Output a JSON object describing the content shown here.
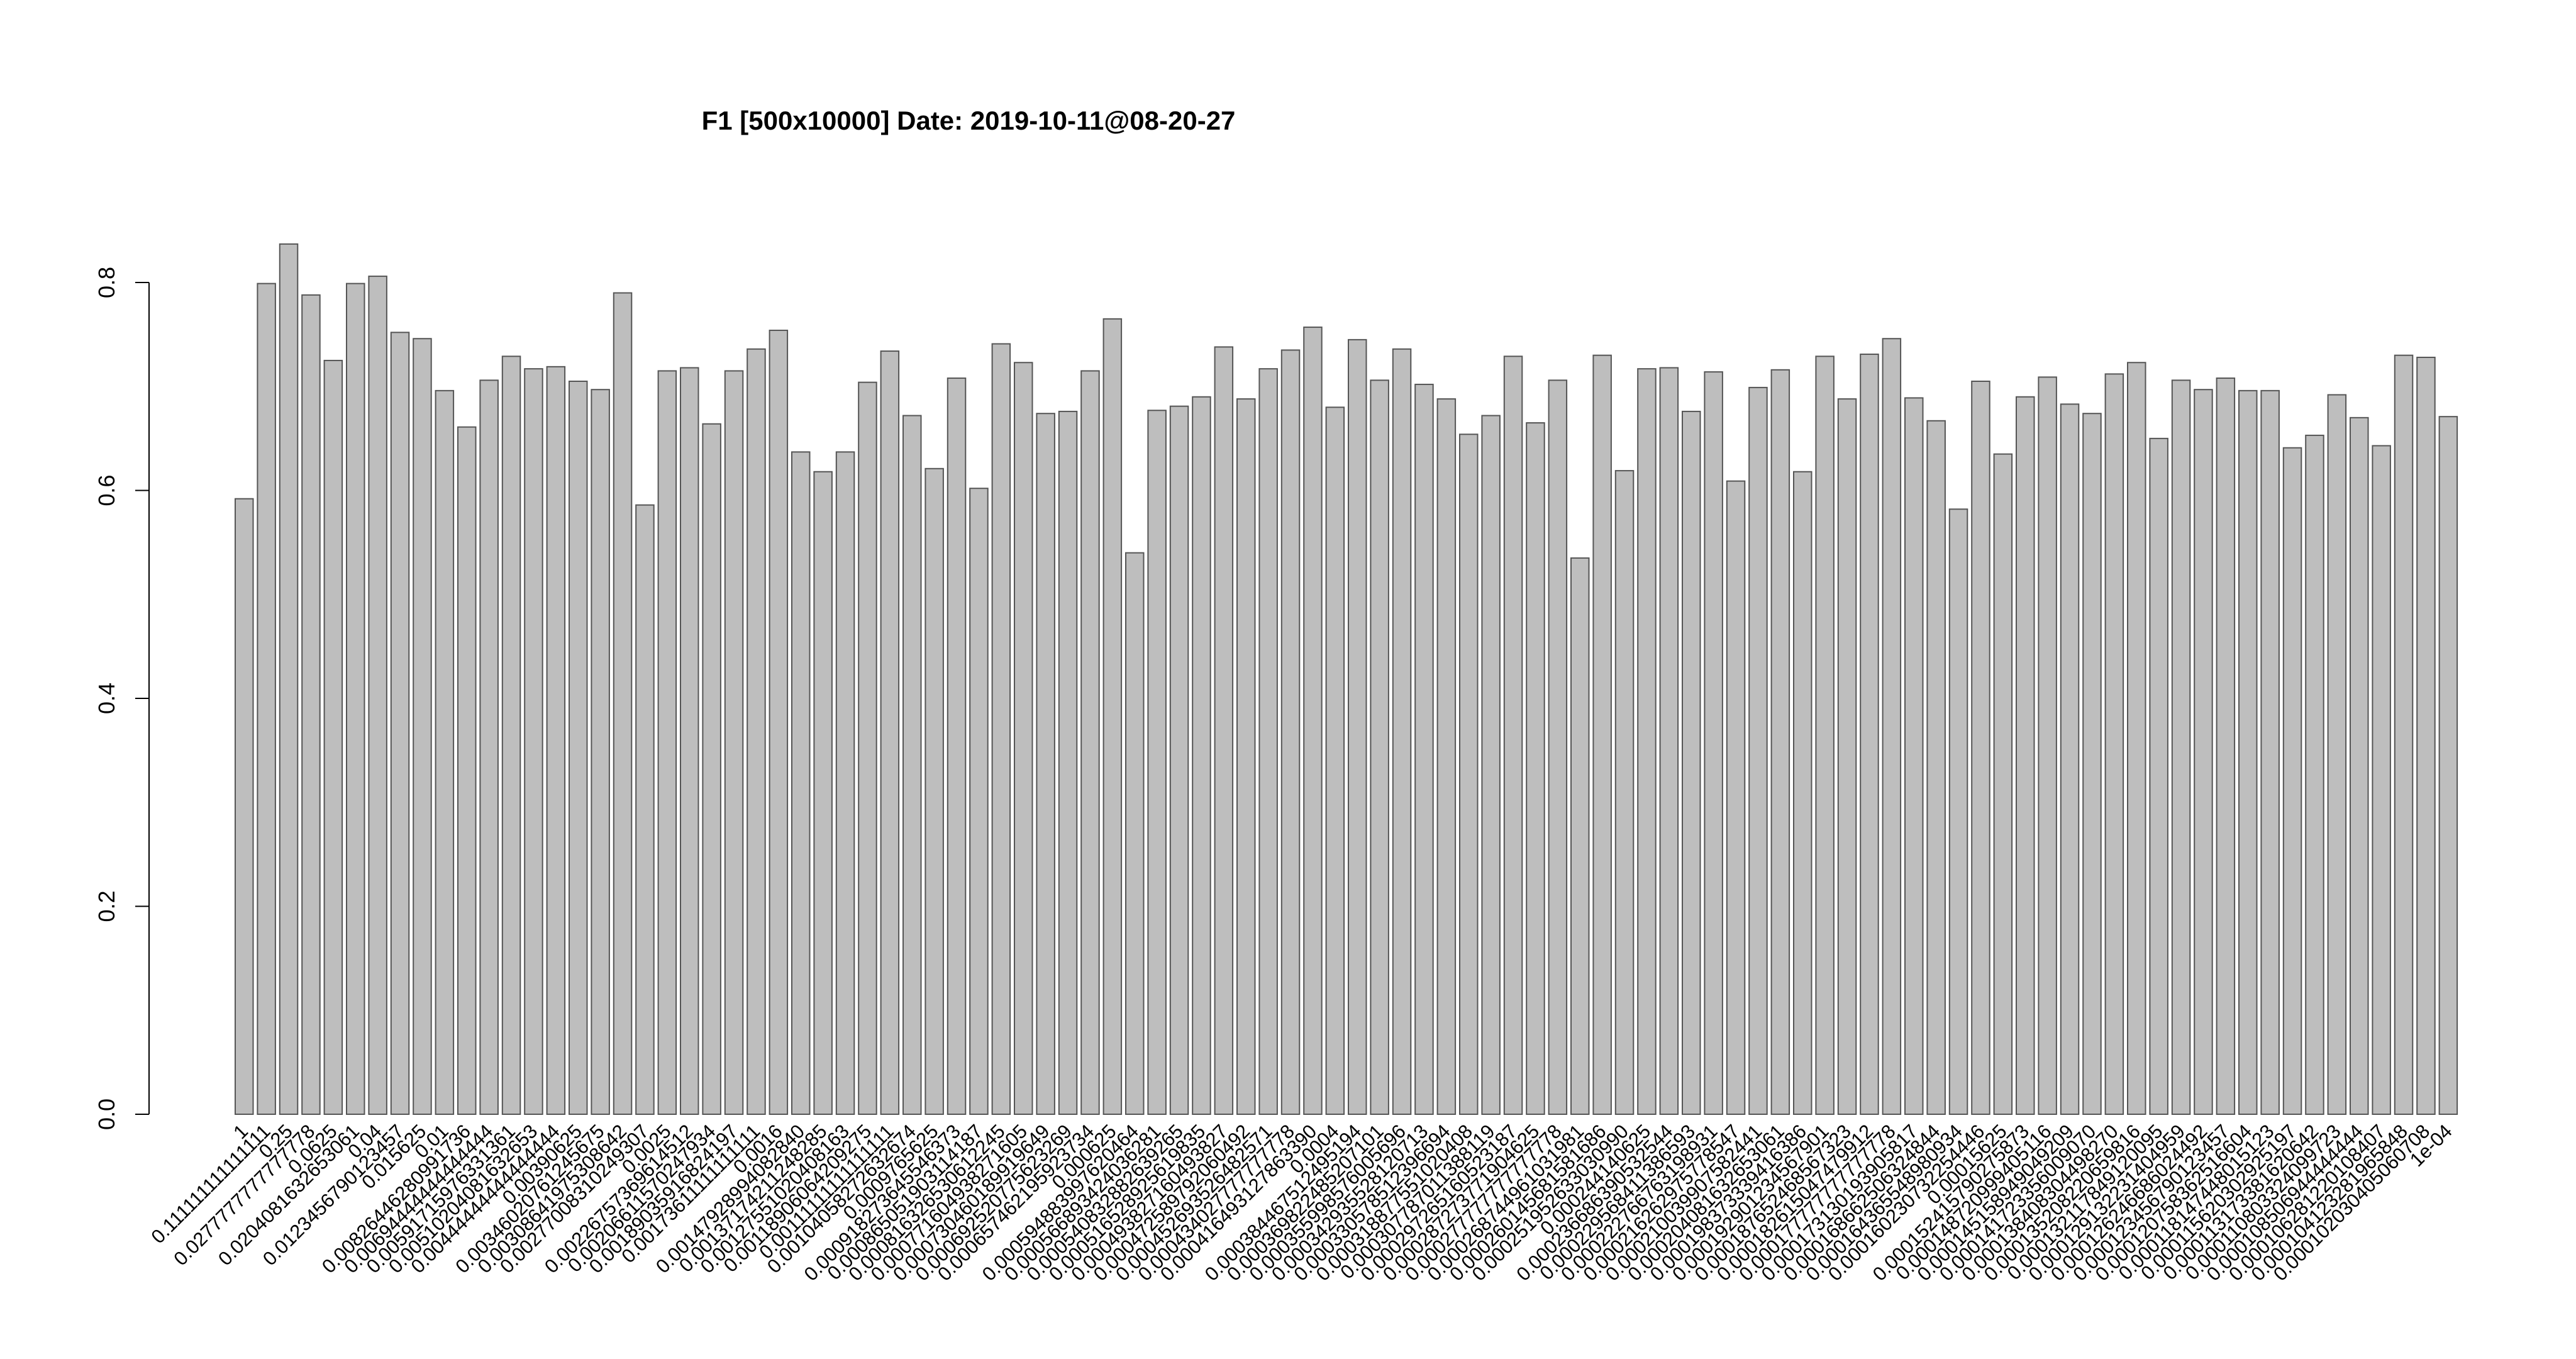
{
  "colors": {
    "bar_fill": "#bebebe",
    "bar_stroke": "#555555",
    "axis": "#000000"
  },
  "chart_data": {
    "type": "bar",
    "title": "F1 [500x10000] Date: 2019-10-11@08-20-27",
    "xlabel": "",
    "ylabel": "",
    "ylim": [
      0,
      0.8
    ],
    "yticks": [
      0.0,
      0.2,
      0.4,
      0.6,
      0.8
    ],
    "ytick_labels": [
      "0.0",
      "0.2",
      "0.4",
      "0.6",
      "0.8"
    ],
    "grid": false,
    "legend": "none",
    "categories": [
      "1",
      "0.111111111111111",
      "0.25",
      "0.0277777777777778",
      "0.0625",
      "0.0204081632653061",
      "0.04",
      "0.0123456790123457",
      "0.015625",
      "0.01",
      "0.00826446280991736",
      "0.00694444444444444",
      "0.00591715976331361",
      "0.00510204081632653",
      "0.00444444444444444",
      "0.00390625",
      "0.00346020761245675",
      "0.00308641975308642",
      "0.00277008310249307",
      "0.0025",
      "0.00226757369614512",
      "0.00206611570247934",
      "0.00189035916824197",
      "0.00173611111111111",
      "0.0016",
      "0.00147928994082840",
      "0.00137174211248285",
      "0.00127551020408163",
      "0.00118906064209275",
      "0.00111111111111111",
      "0.00104058272632674",
      "0.0009765625",
      "0.000918273645546373",
      "0.000865051903114187",
      "0.000816326530612245",
      "0.000771604938271605",
      "0.000730460189919649",
      "0.000692520775623269",
      "0.000657462195923734",
      "0.000625",
      "0.000594883997620464",
      "0.000566893424036281",
      "0.000540832882639265",
      "0.000516528925619835",
      "0.000493827160493827",
      "0.000472589792060492",
      "0.000452693526482571",
      "0.000434027777777778",
      "0.000416493127863390",
      "0.0004",
      "0.000384467512495194",
      "0.000369822485207101",
      "0.000355998576005696",
      "0.000342935528120713",
      "0.000330578512396694",
      "0.000318877551020408",
      "0.000307787011388119",
      "0.000297265160523187",
      "0.000287273771904625",
      "0.000277777777777778",
      "0.000268744961031981",
      "0.000260145681581686",
      "0.000251952633030990",
      "0.000244140625",
      "0.000236686390532544",
      "0.000229568411386593",
      "0.000222766763198931",
      "0.000216262975778547",
      "0.000210039907582441",
      "0.000204081632653061",
      "0.000198373339416386",
      "0.000192901234567901",
      "0.000187652468567323",
      "0.000182615047479912",
      "0.000177777777777778",
      "0.000173130193905817",
      "0.000168662506324844",
      "0.000164365548980934",
      "0.000160230732254446",
      "0.00015625",
      "0.000152415790275873",
      "0.000148720999405116",
      "0.000145158949049209",
      "0.000141723356009070",
      "0.000138408304498270",
      "0.000135208220659816",
      "0.000132117849120095",
      "0.000129132231404959",
      "0.000126246686024492",
      "0.000123456790123457",
      "0.000120758362516604",
      "0.000118147448015123",
      "0.000115620302925197",
      "0.000113173381620642",
      "0.000110803324099723",
      "0.000108506944444444",
      "0.000106281220108407",
      "0.000104123281965848",
      "0.000102030405060708",
      "1e-04"
    ],
    "values": [
      0.592,
      0.799,
      0.837,
      0.788,
      0.725,
      0.799,
      0.806,
      0.752,
      0.746,
      0.696,
      0.661,
      0.706,
      0.729,
      0.717,
      0.719,
      0.705,
      0.697,
      0.79,
      0.586,
      0.715,
      0.718,
      0.664,
      0.715,
      0.736,
      0.754,
      0.637,
      0.618,
      0.637,
      0.704,
      0.734,
      0.672,
      0.621,
      0.708,
      0.602,
      0.741,
      0.723,
      0.674,
      0.676,
      0.715,
      0.765,
      0.54,
      0.677,
      0.681,
      0.69,
      0.738,
      0.688,
      0.717,
      0.735,
      0.757,
      0.68,
      0.745,
      0.706,
      0.736,
      0.702,
      0.688,
      0.654,
      0.672,
      0.729,
      0.665,
      0.706,
      0.535,
      0.73,
      0.619,
      0.717,
      0.718,
      0.676,
      0.714,
      0.609,
      0.699,
      0.716,
      0.618,
      0.729,
      0.688,
      0.731,
      0.746,
      0.689,
      0.667,
      0.582,
      0.705,
      0.635,
      0.69,
      0.709,
      0.683,
      0.674,
      0.712,
      0.723,
      0.65,
      0.706,
      0.697,
      0.708,
      0.696,
      0.696,
      0.641,
      0.653,
      0.692,
      0.67,
      0.643,
      0.73,
      0.728,
      0.671
    ]
  }
}
